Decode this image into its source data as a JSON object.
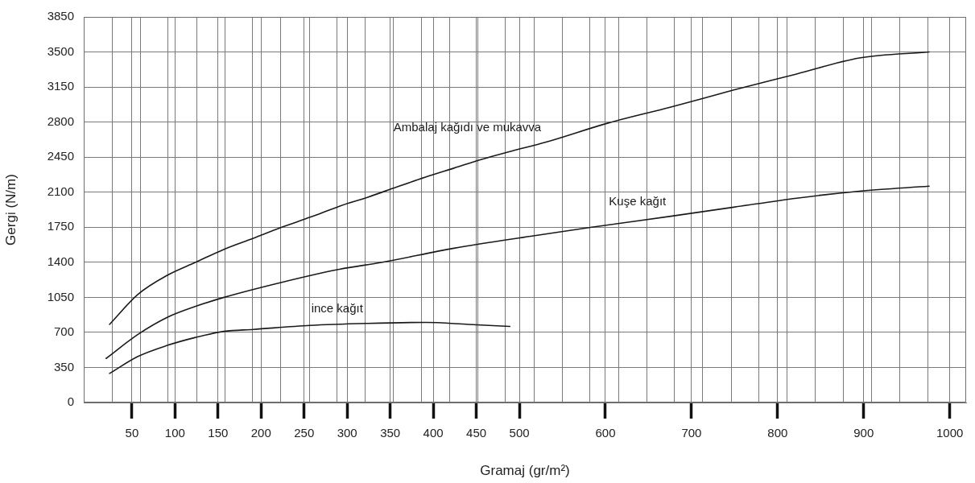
{
  "chart_data": {
    "type": "line",
    "xlabel": "Gramaj (gr/m²)",
    "ylabel": "Gergi (N/m)",
    "xlim": [
      -6,
      1019
    ],
    "ylim": [
      0,
      3850
    ],
    "xticks": [
      {
        "value": 27,
        "label": null
      },
      50,
      {
        "value": 60,
        "label": null
      },
      {
        "value": 92,
        "label": null
      },
      100,
      {
        "value": 125,
        "label": null
      },
      150,
      {
        "value": 158,
        "label": null
      },
      {
        "value": 190,
        "label": null
      },
      200,
      {
        "value": 223,
        "label": null
      },
      250,
      {
        "value": 256,
        "label": null
      },
      {
        "value": 288,
        "label": null
      },
      300,
      {
        "value": 321,
        "label": null
      },
      350,
      {
        "value": 354,
        "label": null
      },
      {
        "value": 386,
        "label": null
      },
      400,
      {
        "value": 419,
        "label": null
      },
      450,
      {
        "value": 452,
        "label": null
      },
      {
        "value": 484,
        "label": null
      },
      500,
      {
        "value": 517,
        "label": null
      },
      {
        "value": 550,
        "label": null
      },
      {
        "value": 582,
        "label": null
      },
      600,
      {
        "value": 615,
        "label": null
      },
      {
        "value": 648,
        "label": null
      },
      {
        "value": 680,
        "label": null
      },
      700,
      {
        "value": 713,
        "label": null
      },
      {
        "value": 746,
        "label": null
      },
      {
        "value": 778,
        "label": null
      },
      800,
      {
        "value": 811,
        "label": null
      },
      {
        "value": 844,
        "label": null
      },
      {
        "value": 876,
        "label": null
      },
      900,
      {
        "value": 909,
        "label": null
      },
      {
        "value": 942,
        "label": null
      },
      {
        "value": 975,
        "label": null
      },
      1000
    ],
    "yticks": [
      0,
      350,
      700,
      1050,
      1400,
      1750,
      2100,
      2450,
      2800,
      3150,
      3500,
      3850
    ],
    "grid": true,
    "legend": false,
    "marker": "none",
    "line_style": "solid",
    "series": [
      {
        "name": "Ambalaj kağıdı ve mukavva",
        "color": "#1a1a1a",
        "x": [
          24,
          57,
          91,
          124,
          157,
          191,
          224,
          257,
          291,
          324,
          357,
          391,
          424,
          457,
          491,
          531,
          603,
          676,
          749,
          822,
          895,
          976
        ],
        "values": [
          780,
          1080,
          1270,
          1400,
          1530,
          1640,
          1750,
          1850,
          1960,
          2050,
          2150,
          2250,
          2340,
          2430,
          2510,
          2600,
          2790,
          2950,
          3120,
          3280,
          3440,
          3500
        ]
      },
      {
        "name": "Kuşe kağıt",
        "color": "#1a1a1a",
        "x": [
          20,
          57,
          91,
          124,
          157,
          224,
          291,
          341,
          424,
          513,
          584,
          676,
          749,
          822,
          895,
          976
        ],
        "values": [
          440,
          680,
          850,
          960,
          1050,
          1200,
          1330,
          1400,
          1540,
          1660,
          1750,
          1860,
          1950,
          2040,
          2110,
          2160
        ]
      },
      {
        "name": "ince kağıt",
        "color": "#1a1a1a",
        "x": [
          24,
          57,
          91,
          124,
          157,
          191,
          257,
          324,
          391,
          441,
          489
        ],
        "values": [
          290,
          460,
          570,
          650,
          710,
          730,
          770,
          790,
          800,
          780,
          760
        ]
      }
    ]
  }
}
